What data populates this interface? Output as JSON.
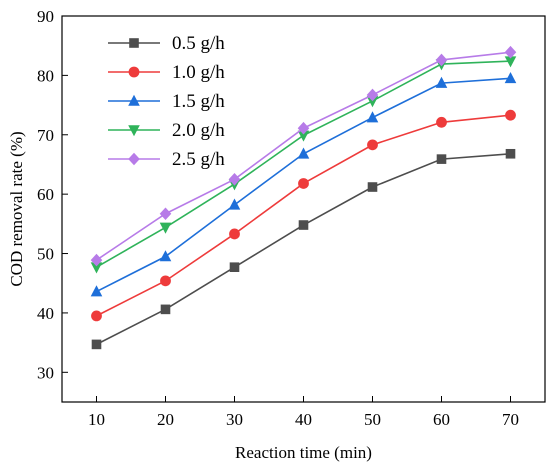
{
  "chart_data": {
    "type": "line",
    "xlabel": "Reaction time (min)",
    "ylabel": "COD removal rate (%)",
    "x": [
      10,
      20,
      30,
      40,
      50,
      60,
      70
    ],
    "xlim": [
      5,
      75
    ],
    "ylim": [
      25,
      90
    ],
    "xticks": [
      10,
      20,
      30,
      40,
      50,
      60,
      70
    ],
    "yticks": [
      30,
      40,
      50,
      60,
      70,
      80,
      90
    ],
    "grid": false,
    "legend_position": "top-left",
    "series": [
      {
        "name": "0.5 g/h",
        "color": "#4d4d4d",
        "marker": "square",
        "values": [
          34.7,
          40.6,
          47.7,
          54.8,
          61.2,
          65.9,
          66.8
        ]
      },
      {
        "name": "1.0 g/h",
        "color": "#ee3b3b",
        "marker": "circle",
        "values": [
          39.5,
          45.4,
          53.3,
          61.8,
          68.3,
          72.1,
          73.3
        ]
      },
      {
        "name": "1.5 g/h",
        "color": "#1e6fd9",
        "marker": "triangle-up",
        "values": [
          43.6,
          49.5,
          58.2,
          66.8,
          72.9,
          78.7,
          79.5
        ]
      },
      {
        "name": "2.0 g/h",
        "color": "#2fb35a",
        "marker": "triangle-down",
        "values": [
          47.7,
          54.4,
          61.7,
          69.9,
          75.7,
          81.9,
          82.4
        ]
      },
      {
        "name": "2.5 g/h",
        "color": "#b77be8",
        "marker": "diamond",
        "values": [
          48.9,
          56.7,
          62.5,
          71.1,
          76.7,
          82.6,
          83.9
        ]
      }
    ]
  }
}
